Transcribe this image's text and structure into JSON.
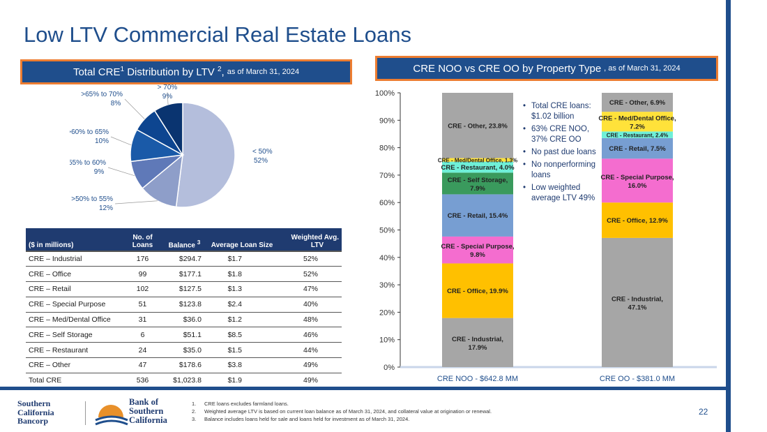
{
  "slide": {
    "title": "Low LTV Commercial Real Estate Loans",
    "page_number": "22"
  },
  "left_banner": {
    "text_a": "Total CRE",
    "sup_a": "1",
    "text_b": " Distribution by LTV ",
    "sup_b": "2",
    "text_c": ",",
    "asof": "as of March 31, 2024"
  },
  "right_banner": {
    "text": "CRE NOO vs CRE OO by Property Type",
    "asof": ", as of March 31, 2024"
  },
  "pie": {
    "slices": [
      {
        "label": "< 50%",
        "pct": "52%",
        "value": 52,
        "color": "#b4bedc"
      },
      {
        "label": ">50% to 55%",
        "pct": "12%",
        "value": 12,
        "color": "#8e9ec9"
      },
      {
        "label": ">55% to 60%",
        "pct": "9%",
        "value": 9,
        "color": "#5f79b8"
      },
      {
        "label": ">60% to 65%",
        "pct": "10%",
        "value": 10,
        "color": "#1a5aa8"
      },
      {
        "label": ">65% to 70%",
        "pct": "8%",
        "value": 8,
        "color": "#0d4590"
      },
      {
        "label": "> 70%",
        "pct": "9%",
        "value": 9,
        "color": "#0a3470"
      }
    ]
  },
  "table": {
    "headers": {
      "col1": "($ in millions)",
      "col2_a": "No. of",
      "col2_b": "Loans",
      "col3": "Balance",
      "col3_sup": "3",
      "col4": "Average Loan Size",
      "col5_a": "Weighted Avg.",
      "col5_b": "LTV"
    },
    "rows": [
      {
        "name": "CRE – Industrial",
        "loans": "176",
        "balance": "$294.7",
        "avg": "$1.7",
        "ltv": "52%"
      },
      {
        "name": "CRE – Office",
        "loans": "99",
        "balance": "$177.1",
        "avg": "$1.8",
        "ltv": "52%"
      },
      {
        "name": "CRE – Retail",
        "loans": "102",
        "balance": "$127.5",
        "avg": "$1.3",
        "ltv": "47%"
      },
      {
        "name": "CRE – Special Purpose",
        "loans": "51",
        "balance": "$123.8",
        "avg": "$2.4",
        "ltv": "40%"
      },
      {
        "name": "CRE – Med/Dental Office",
        "loans": "31",
        "balance": "$36.0",
        "avg": "$1.2",
        "ltv": "48%"
      },
      {
        "name": "CRE – Self Storage",
        "loans": "6",
        "balance": "$51.1",
        "avg": "$8.5",
        "ltv": "46%"
      },
      {
        "name": "CRE – Restaurant",
        "loans": "24",
        "balance": "$35.0",
        "avg": "$1.5",
        "ltv": "44%"
      },
      {
        "name": "CRE – Other",
        "loans": "47",
        "balance": "$178.6",
        "avg": "$3.8",
        "ltv": "49%"
      },
      {
        "name": "Total CRE",
        "loans": "536",
        "balance": "$1,023.8",
        "avg": "$1.9",
        "ltv": "49%"
      }
    ]
  },
  "chart_data": {
    "type": "bar",
    "stacked": true,
    "categories": [
      "CRE NOO - $642.8 MM",
      "CRE OO - $381.0 MM"
    ],
    "y_ticks": [
      "0%",
      "10%",
      "20%",
      "30%",
      "40%",
      "50%",
      "60%",
      "70%",
      "80%",
      "90%",
      "100%"
    ],
    "ylim": [
      0,
      100
    ],
    "series": [
      {
        "name": "CRE - Industrial",
        "color": "#a6a6a6",
        "values": [
          17.9,
          47.1
        ],
        "labels": [
          "CRE - Industrial, 17.9%",
          "CRE - Industrial, 47.1%"
        ]
      },
      {
        "name": "CRE - Office",
        "color": "#ffc000",
        "values": [
          19.9,
          12.9
        ],
        "labels": [
          "CRE - Office, 19.9%",
          "CRE - Office, 12.9%"
        ]
      },
      {
        "name": "CRE - Special Purpose",
        "color": "#f46dcf",
        "values": [
          9.8,
          16.0
        ],
        "labels": [
          "CRE - Special Purpose, 9.8%",
          "CRE - Special Purpose, 16.0%"
        ]
      },
      {
        "name": "CRE - Retail",
        "color": "#779ed2",
        "values": [
          15.4,
          7.5
        ],
        "labels": [
          "CRE - Retail, 15.4%",
          "CRE - Retail, 7.5%"
        ]
      },
      {
        "name": "CRE - Self Storage",
        "color": "#3a9a5d",
        "values": [
          7.9,
          0
        ],
        "labels": [
          "CRE - Self Storage, 7.9%",
          ""
        ]
      },
      {
        "name": "CRE - Restaurant",
        "color": "#6ff0d8",
        "values": [
          4.0,
          2.4
        ],
        "labels": [
          "CRE - Restaurant, 4.0%",
          "CRE - Restaurant, 2.4%"
        ]
      },
      {
        "name": "CRE - Med/Dental Office",
        "color": "#ffe23a",
        "values": [
          1.3,
          7.2
        ],
        "labels": [
          "CRE - Med/Dental Office, 1.3%",
          "CRE - Med/Dental Office, 7.2%"
        ]
      },
      {
        "name": "CRE - Other",
        "color": "#a6a6a6",
        "values": [
          23.8,
          6.9
        ],
        "labels": [
          "CRE - Other, 23.8%",
          "CRE - Other, 6.9%"
        ]
      }
    ]
  },
  "bullets": [
    "Total CRE loans: $1.02 billion",
    "63% CRE NOO, 37% CRE OO",
    "No past due loans",
    "No nonperforming loans",
    "Low weighted average LTV 49%"
  ],
  "footnotes": [
    {
      "num": "1.",
      "text": "CRE loans excludes farmland loans."
    },
    {
      "num": "2.",
      "text": "Weighted average LTV is based on current loan balance as of March 31, 2024, and collateral value at origination or renewal."
    },
    {
      "num": "3.",
      "text": "Balance includes loans held for sale and loans held for investment as of March 31, 2024."
    }
  ],
  "logos": {
    "bancorp": [
      "Southern",
      "California",
      "Bancorp"
    ],
    "bank": [
      "Bank of",
      "Southern",
      "California"
    ]
  }
}
